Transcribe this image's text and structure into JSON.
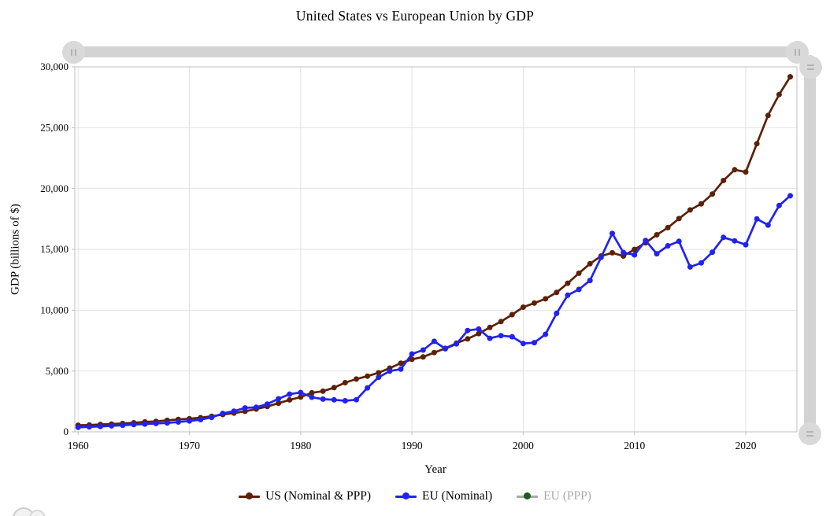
{
  "chart": {
    "title": "United States vs European Union by GDP",
    "xlabel": "Year",
    "ylabel": "GDP (billions of $)"
  },
  "legend": {
    "items": [
      {
        "label": "US (Nominal & PPP)",
        "line_color": "#5c2108",
        "dot_color": "#5c2108",
        "disabled": false
      },
      {
        "label": "EU (Nominal)",
        "line_color": "#2222f0",
        "dot_color": "#2222f0",
        "disabled": false
      },
      {
        "label": "EU (PPP)",
        "line_color": "#a8a8a8",
        "dot_color": "#1e5c1e",
        "disabled": true
      }
    ]
  },
  "scrollbars": {
    "horizontal_grip_icon": "pause-like-vertical-lines-icon",
    "vertical_grip_icon": "equals-horizontal-lines-icon",
    "track_color": "#d3d3d3",
    "grip_color": "#d9d9d9"
  },
  "colors": {
    "us_series": "#5c2108",
    "eu_nominal_series": "#2222f0",
    "eu_ppp_marker": "#1e5c1e",
    "disabled_text": "#a9a9a9",
    "gridline": "#e2e2e2",
    "plot_border": "#bfbfbf"
  },
  "chart_data": {
    "type": "line",
    "title": "United States vs European Union by GDP",
    "xlabel": "Year",
    "ylabel": "GDP (billions of $)",
    "xlim": [
      1959.7,
      2024.6
    ],
    "ylim": [
      0,
      30000
    ],
    "grid": true,
    "legend_position": "bottom",
    "x": [
      1960,
      1961,
      1962,
      1963,
      1964,
      1965,
      1966,
      1967,
      1968,
      1969,
      1970,
      1971,
      1972,
      1973,
      1974,
      1975,
      1976,
      1977,
      1978,
      1979,
      1980,
      1981,
      1982,
      1983,
      1984,
      1985,
      1986,
      1987,
      1988,
      1989,
      1990,
      1991,
      1992,
      1993,
      1994,
      1995,
      1996,
      1997,
      1998,
      1999,
      2000,
      2001,
      2002,
      2003,
      2004,
      2005,
      2006,
      2007,
      2008,
      2009,
      2010,
      2011,
      2012,
      2013,
      2014,
      2015,
      2016,
      2017,
      2018,
      2019,
      2020,
      2021,
      2022,
      2023,
      2024
    ],
    "series": [
      {
        "name": "US (Nominal & PPP)",
        "slug": "us-nominal-ppp",
        "color": "#5c2108",
        "hidden": false,
        "values": [
          543,
          563,
          605,
          639,
          686,
          744,
          815,
          862,
          942,
          1020,
          1073,
          1165,
          1279,
          1425,
          1545,
          1685,
          1873,
          2082,
          2352,
          2627,
          2857,
          3207,
          3344,
          3634,
          4038,
          4339,
          4580,
          4855,
          5236,
          5642,
          5963,
          6158,
          6520,
          6859,
          7287,
          7640,
          8073,
          8578,
          9063,
          9631,
          10251,
          10582,
          10936,
          11458,
          12214,
          13037,
          13815,
          14452,
          14713,
          14449,
          14992,
          15543,
          16197,
          16785,
          17527,
          18238,
          18745,
          19543,
          20657,
          21540,
          21354,
          23681,
          26007,
          27721,
          29185
        ]
      },
      {
        "name": "EU (Nominal)",
        "slug": "eu-nominal",
        "color": "#2222f0",
        "hidden": false,
        "values": [
          366,
          407,
          447,
          491,
          544,
          592,
          639,
          686,
          733,
          810,
          895,
          1005,
          1190,
          1510,
          1700,
          1965,
          2020,
          2280,
          2715,
          3100,
          3232,
          2845,
          2692,
          2630,
          2557,
          2640,
          3615,
          4480,
          4990,
          5150,
          6400,
          6723,
          7440,
          6830,
          7230,
          8330,
          8450,
          7690,
          7910,
          7820,
          7263,
          7330,
          8020,
          9740,
          11230,
          11700,
          12440,
          14340,
          16310,
          14740,
          14550,
          15730,
          14640,
          15290,
          15660,
          13550,
          13890,
          14770,
          15980,
          15700,
          15380,
          17500,
          17000,
          18600,
          19400
        ]
      },
      {
        "name": "EU (PPP)",
        "slug": "eu-ppp",
        "color": "#1e5c1e",
        "hidden": true,
        "values": []
      }
    ],
    "xticks": {
      "values": [
        1960,
        1970,
        1980,
        1990,
        2000,
        2010,
        2020
      ],
      "labels": [
        "1960",
        "1970",
        "1980",
        "1990",
        "2000",
        "2010",
        "2020"
      ]
    },
    "yticks": {
      "values": [
        0,
        5000,
        10000,
        15000,
        20000,
        25000,
        30000
      ],
      "labels": [
        "0",
        "5,000",
        "10,000",
        "15,000",
        "20,000",
        "25,000",
        "30,000"
      ]
    }
  }
}
